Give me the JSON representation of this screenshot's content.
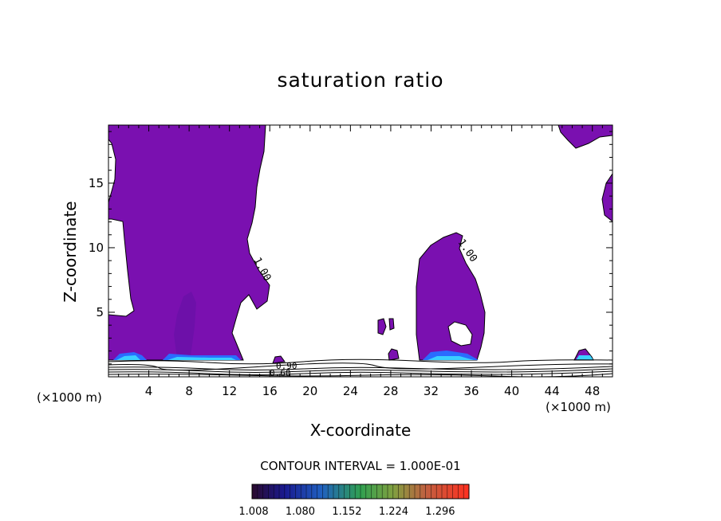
{
  "chart_data": {
    "type": "heatmap",
    "title": "saturation ratio",
    "xlabel": "X-coordinate",
    "ylabel": "Z-coordinate",
    "x_unit_left": "(×1000 m)",
    "x_unit_right": "(×1000 m)",
    "xlim": [
      0,
      50
    ],
    "ylim": [
      0,
      19.5
    ],
    "x_ticks": [
      4,
      8,
      12,
      16,
      20,
      24,
      28,
      32,
      36,
      40,
      44,
      48
    ],
    "y_ticks": [
      5,
      10,
      15
    ],
    "contour_labels": [
      "1.00",
      "1.00",
      "0.90",
      "0.60"
    ],
    "contour_interval": "CONTOUR INTERVAL = 1.000E-01",
    "colorbar": {
      "labels": [
        "1.008",
        "1.080",
        "1.152",
        "1.224",
        "1.296"
      ],
      "min": 1.008,
      "max": 1.296
    },
    "colors": {
      "saturated_fill": "#7a10b0",
      "low_layer_blue": "#2a6cff",
      "low_layer_cyan": "#3ad0ff",
      "contour_line": "#000000"
    }
  }
}
